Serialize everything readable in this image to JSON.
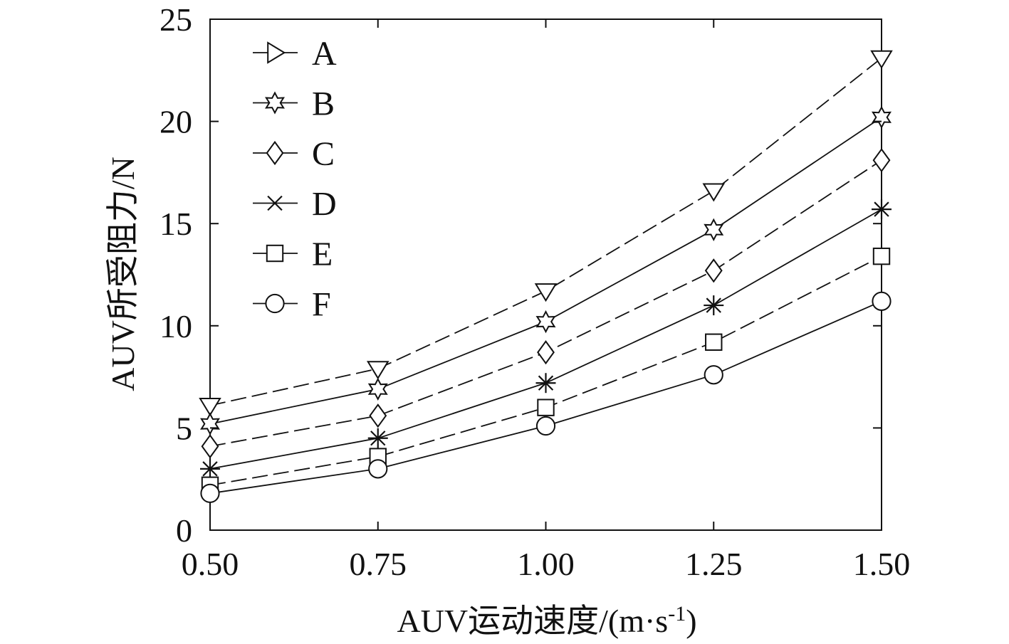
{
  "chart_data": {
    "type": "line",
    "title": "",
    "xlabel": "AUV运动速度/(m·s",
    "xlabel_sup": "-1",
    "xlabel_tail": ")",
    "ylabel": "AUV所受阻力/N",
    "xlim": [
      0.5,
      1.5
    ],
    "ylim": [
      0,
      25
    ],
    "x": [
      0.5,
      0.75,
      1.0,
      1.25,
      1.5
    ],
    "x_tick_labels": [
      "0.50",
      "0.75",
      "1.00",
      "1.25",
      "1.50"
    ],
    "y_ticks": [
      0,
      5,
      10,
      15,
      20,
      25
    ],
    "y_tick_labels": [
      "0",
      "5",
      "10",
      "15",
      "20",
      "25"
    ],
    "grid": false,
    "legend_position": "top-left",
    "series": [
      {
        "name": "A",
        "marker": "triangle-down",
        "dash": "dashed",
        "values": [
          6.1,
          7.9,
          11.7,
          16.6,
          23.1
        ]
      },
      {
        "name": "B",
        "marker": "star",
        "dash": "solid",
        "values": [
          5.2,
          6.9,
          10.2,
          14.7,
          20.2
        ]
      },
      {
        "name": "C",
        "marker": "diamond",
        "dash": "dashed",
        "values": [
          4.1,
          5.6,
          8.7,
          12.7,
          18.1
        ]
      },
      {
        "name": "D",
        "marker": "asterisk",
        "dash": "solid",
        "values": [
          3.0,
          4.5,
          7.2,
          11.0,
          15.7
        ]
      },
      {
        "name": "E",
        "marker": "square",
        "dash": "dashed",
        "values": [
          2.2,
          3.6,
          6.0,
          9.2,
          13.4
        ]
      },
      {
        "name": "F",
        "marker": "circle",
        "dash": "solid",
        "values": [
          1.8,
          3.0,
          5.1,
          7.6,
          11.2
        ]
      }
    ]
  }
}
